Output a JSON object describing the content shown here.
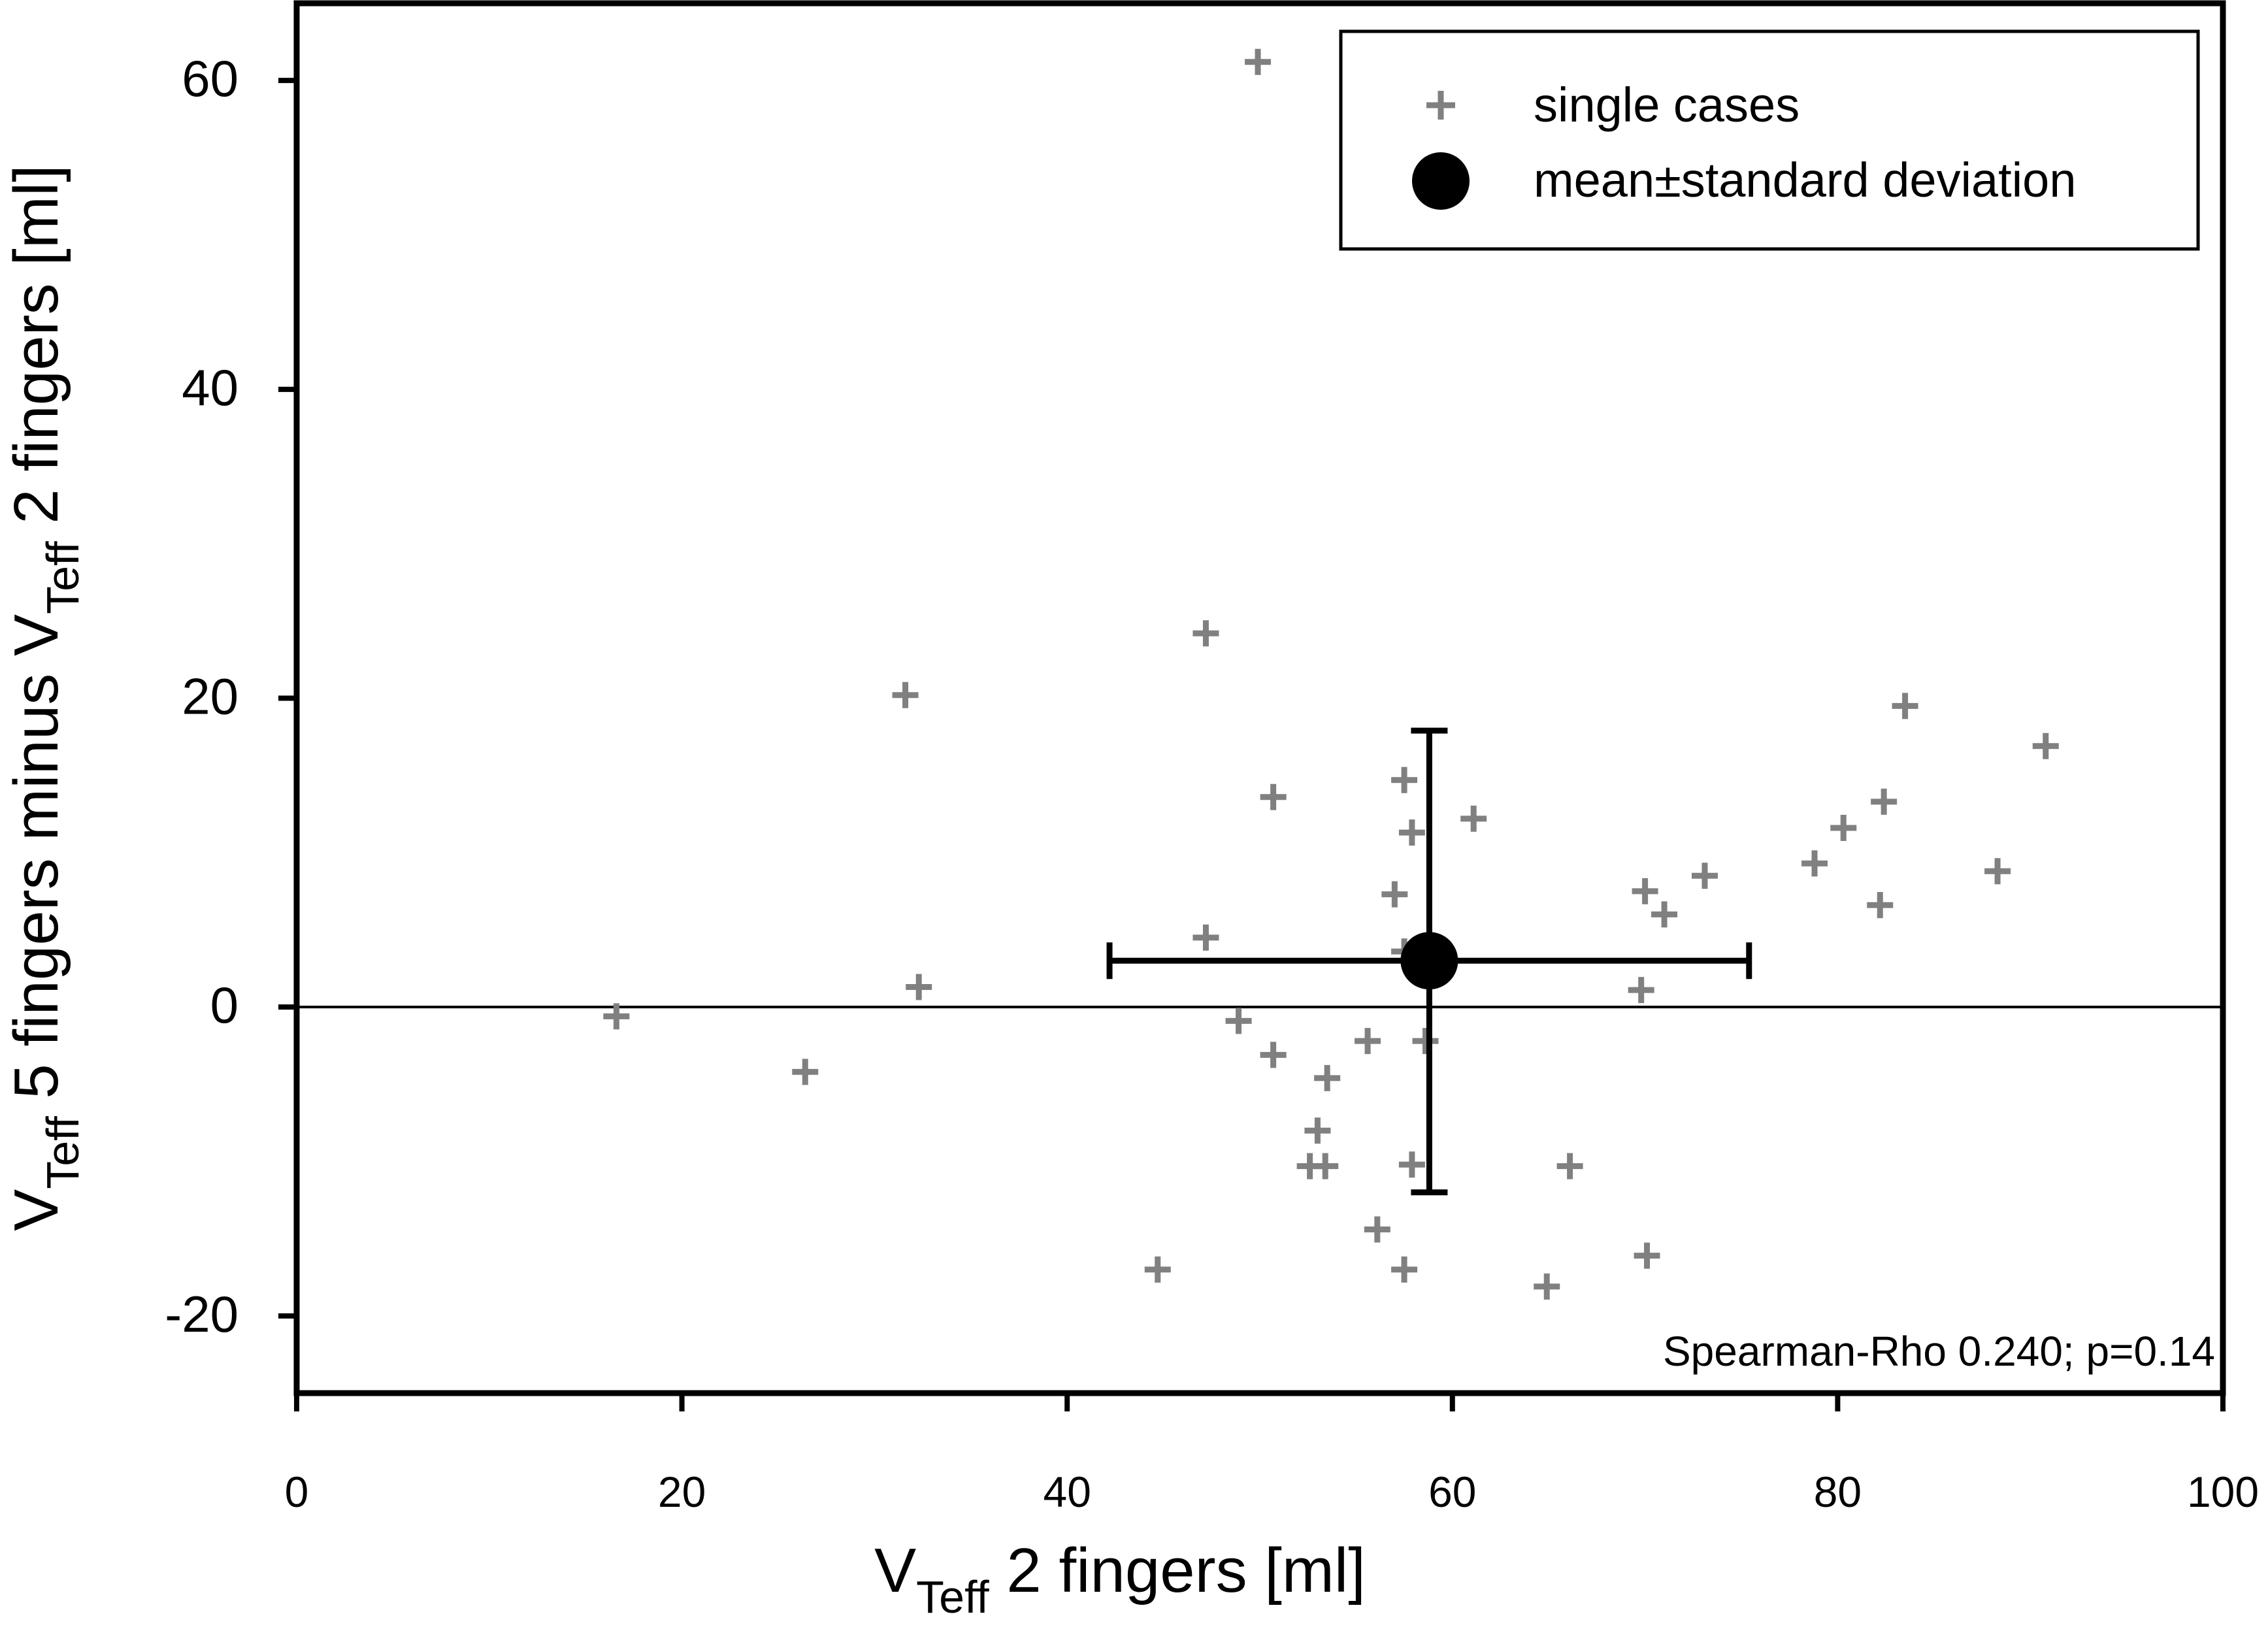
{
  "chart_data": {
    "type": "scatter",
    "title": "",
    "xlabel": {
      "prefix": "V",
      "subscript": "Teff",
      "suffix": " 2 fingers [ml]"
    },
    "ylabel": {
      "prefix": "V",
      "subscript": "Teff",
      "middle": " 5 fingers minus V",
      "subscript2": "Teff",
      "suffix": " 2 fingers [ml]"
    },
    "xlim": [
      0,
      100
    ],
    "ylim": [
      -25,
      65
    ],
    "xticks": [
      0,
      20,
      40,
      60,
      80,
      100
    ],
    "yticks": [
      -20,
      0,
      20,
      40,
      60
    ],
    "xtick_labels": [
      "0",
      "20",
      "40",
      "60",
      "80",
      "100"
    ],
    "ytick_labels": [
      "-20",
      "0",
      "20",
      "40",
      "60"
    ],
    "reference_line_y": 0,
    "legend": {
      "position": "top-right",
      "entries": [
        "single cases",
        "mean±standard deviation"
      ]
    },
    "annotation": "Spearman-Rho 0.240; p=0.14",
    "series": [
      {
        "name": "single cases",
        "marker": "plus",
        "color": "#808080",
        "points": [
          [
            16.6,
            -0.6
          ],
          [
            26.4,
            -4.2
          ],
          [
            31.6,
            20.2
          ],
          [
            32.3,
            1.3
          ],
          [
            44.7,
            -17.0
          ],
          [
            47.2,
            24.2
          ],
          [
            47.2,
            4.5
          ],
          [
            48.9,
            -0.9
          ],
          [
            49.9,
            61.2
          ],
          [
            50.7,
            13.6
          ],
          [
            50.7,
            -3.1
          ],
          [
            52.6,
            -10.3
          ],
          [
            53.0,
            -8.0
          ],
          [
            53.4,
            -10.3
          ],
          [
            53.5,
            -4.6
          ],
          [
            55.6,
            -2.2
          ],
          [
            56.1,
            -14.4
          ],
          [
            57.0,
            7.3
          ],
          [
            57.5,
            3.6
          ],
          [
            57.5,
            14.7
          ],
          [
            57.5,
            -17.0
          ],
          [
            57.9,
            11.3
          ],
          [
            57.9,
            -10.2
          ],
          [
            58.6,
            -2.2
          ],
          [
            61.1,
            12.2
          ],
          [
            64.9,
            -18.1
          ],
          [
            66.1,
            -10.3
          ],
          [
            69.8,
            1.1
          ],
          [
            70.0,
            7.5
          ],
          [
            70.1,
            -16.1
          ],
          [
            71.0,
            6.0
          ],
          [
            73.1,
            8.5
          ],
          [
            78.8,
            9.3
          ],
          [
            80.3,
            11.6
          ],
          [
            82.2,
            6.6
          ],
          [
            82.4,
            13.3
          ],
          [
            83.5,
            19.5
          ],
          [
            88.3,
            8.8
          ],
          [
            90.8,
            16.9
          ]
        ]
      },
      {
        "name": "mean±standard deviation",
        "marker": "circle",
        "color": "#000000",
        "mean": [
          58.8,
          3.0
        ],
        "x_sd_range": [
          42.2,
          75.4
        ],
        "y_sd_range": [
          -12.0,
          17.9
        ]
      }
    ]
  }
}
